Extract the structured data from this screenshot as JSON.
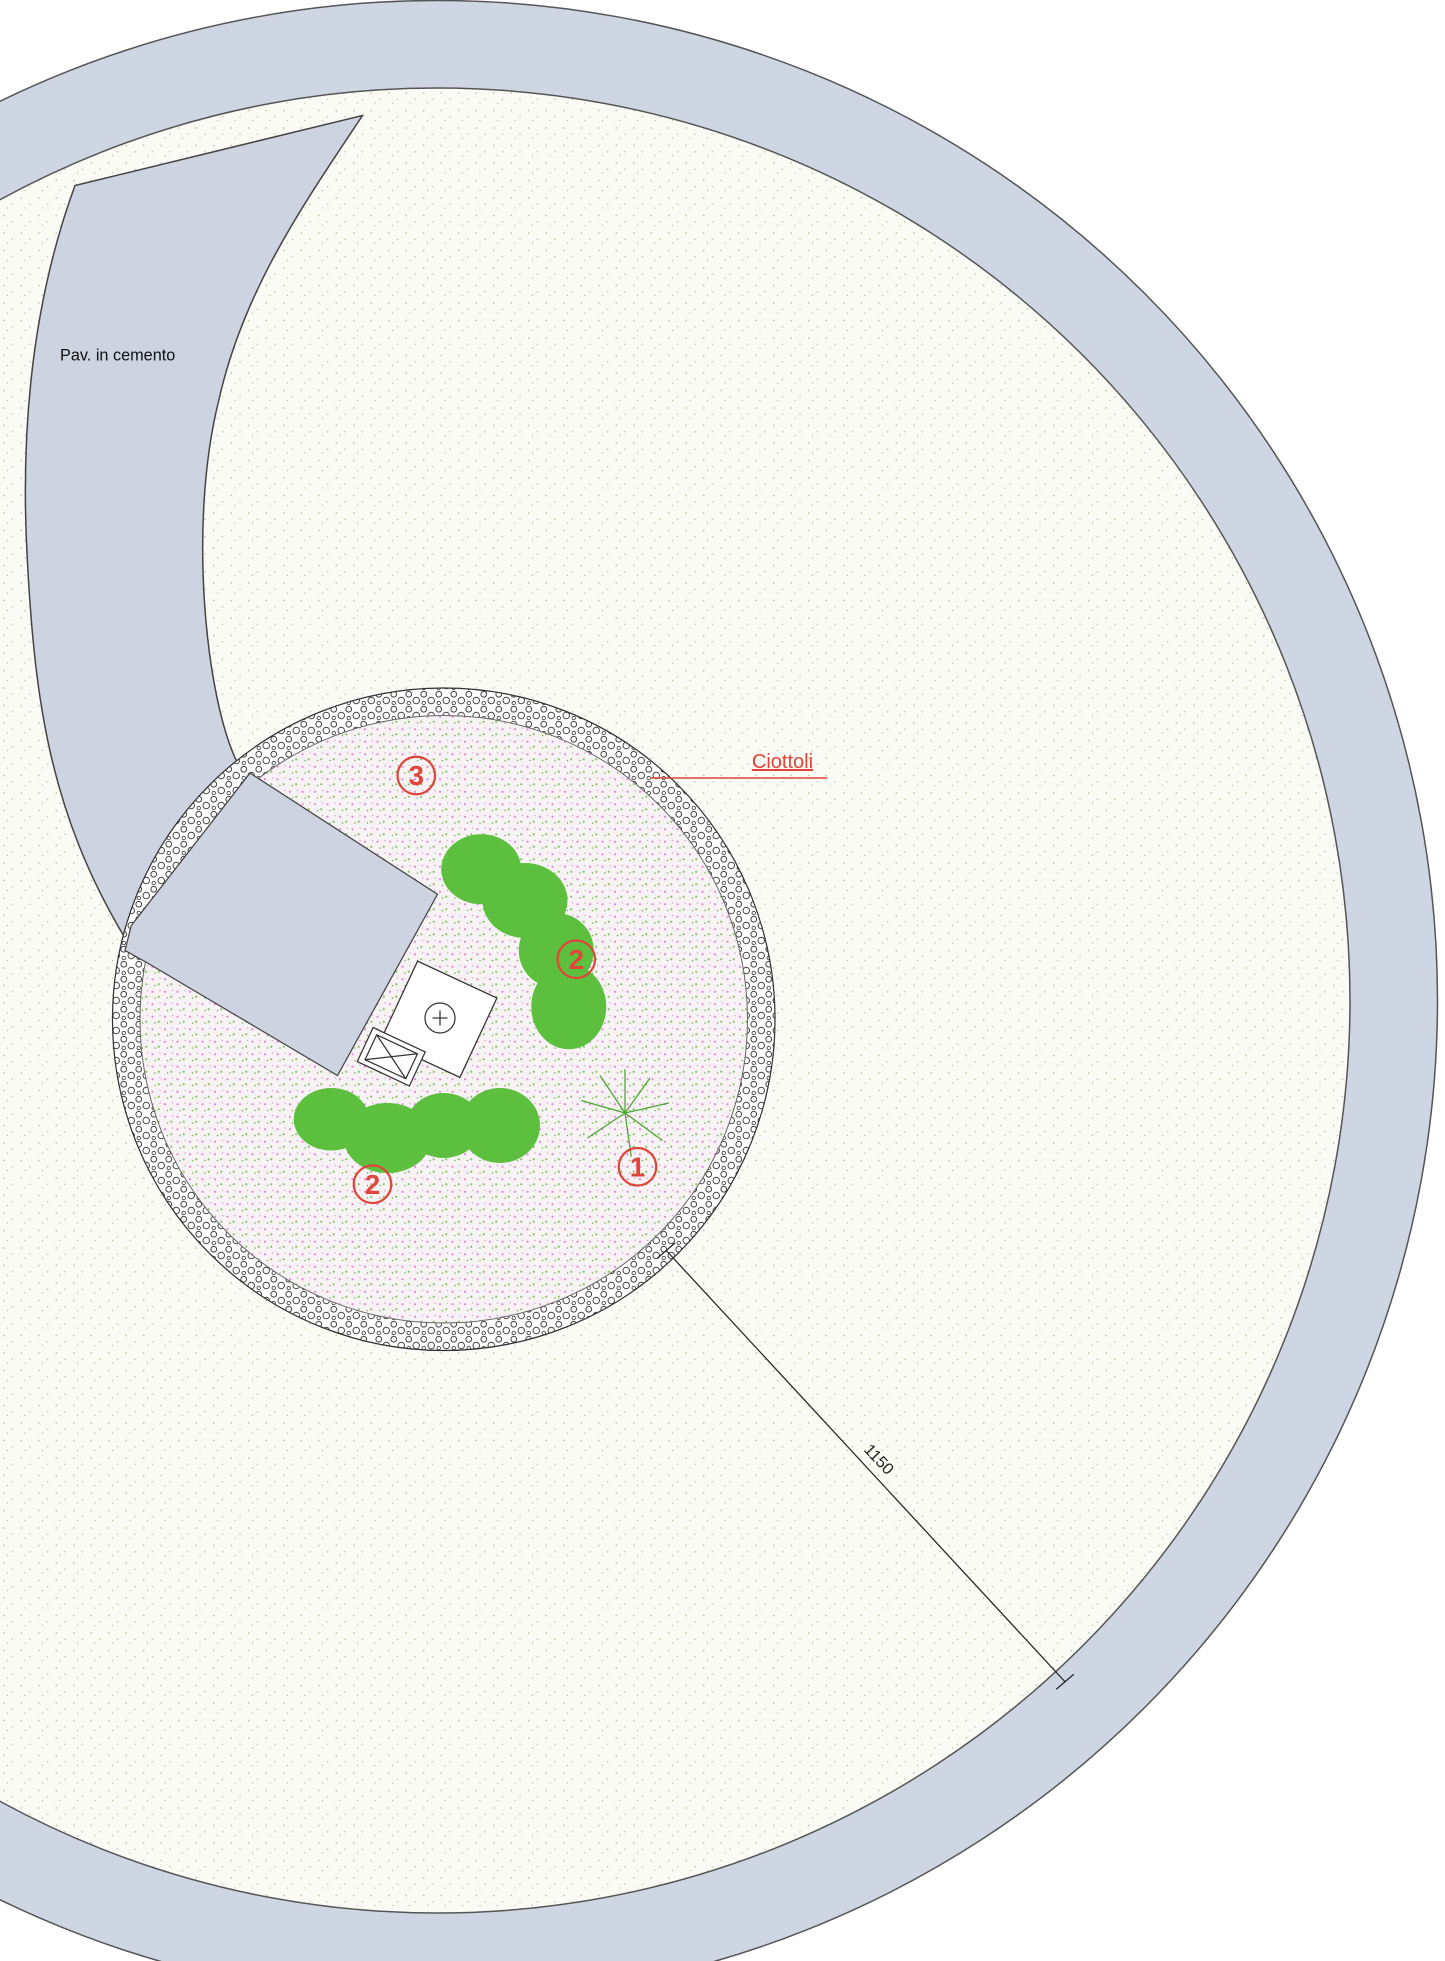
{
  "labels": {
    "pavement": "Pav. in cemento",
    "pebbles": "Ciottoli"
  },
  "markers": [
    "3",
    "2",
    "2",
    "1"
  ],
  "dimension": "1150"
}
